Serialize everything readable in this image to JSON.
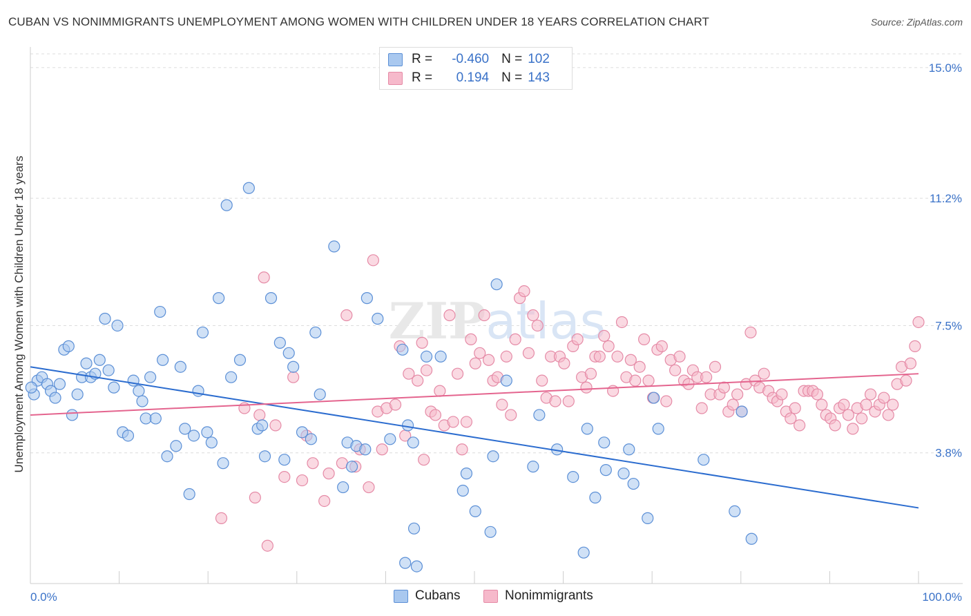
{
  "header": {
    "title": "CUBAN VS NONIMMIGRANTS UNEMPLOYMENT AMONG WOMEN WITH CHILDREN UNDER 18 YEARS CORRELATION CHART",
    "source": "Source: ZipAtlas.com"
  },
  "legend": {
    "rows": [
      {
        "r_label": "R =",
        "r_value": "-0.460",
        "n_label": "N =",
        "n_value": "102"
      },
      {
        "r_label": "R =",
        "r_value": "0.194",
        "n_label": "N =",
        "n_value": "143"
      }
    ],
    "bottom": [
      "Cubans",
      "Nonimmigrants"
    ]
  },
  "watermark": "ZIPatlas",
  "colors": {
    "cubans_fill": "#a9c8ef",
    "cubans_stroke": "#5b8fd6",
    "cubans_line": "#2b6ccf",
    "nonimm_fill": "#f6b9cb",
    "nonimm_stroke": "#e58aa6",
    "nonimm_line": "#e4648e",
    "tick_label": "#3a72c8"
  },
  "chart_data": {
    "type": "scatter",
    "title": "CUBAN VS NONIMMIGRANTS UNEMPLOYMENT AMONG WOMEN WITH CHILDREN UNDER 18 YEARS CORRELATION CHART",
    "xlabel": "",
    "ylabel": "Unemployment Among Women with Children Under 18 years",
    "xlim": [
      0,
      100
    ],
    "ylim": [
      0,
      15.4
    ],
    "x_tick_labels": [
      "0.0%",
      "100.0%"
    ],
    "y_ticks": [
      3.8,
      7.5,
      11.2,
      15.0
    ],
    "y_tick_labels": [
      "3.8%",
      "7.5%",
      "11.2%",
      "15.0%"
    ],
    "grid": "horizontal dashed",
    "legend_position": "top-center",
    "series": [
      {
        "name": "Cubans",
        "trend": {
          "x": [
            0,
            100
          ],
          "y": [
            6.3,
            2.2
          ]
        },
        "points": [
          [
            0.4,
            5.5
          ],
          [
            0.8,
            5.9
          ],
          [
            1.3,
            6.0
          ],
          [
            1.9,
            5.8
          ],
          [
            2.3,
            5.6
          ],
          [
            2.8,
            5.4
          ],
          [
            3.3,
            5.8
          ],
          [
            3.8,
            6.8
          ],
          [
            4.3,
            6.9
          ],
          [
            4.7,
            4.9
          ],
          [
            5.3,
            5.5
          ],
          [
            5.8,
            6.0
          ],
          [
            6.3,
            6.4
          ],
          [
            6.8,
            6.0
          ],
          [
            7.3,
            6.1
          ],
          [
            7.8,
            6.5
          ],
          [
            8.4,
            7.7
          ],
          [
            8.8,
            6.2
          ],
          [
            9.4,
            5.7
          ],
          [
            9.8,
            7.5
          ],
          [
            10.4,
            4.4
          ],
          [
            11.0,
            4.3
          ],
          [
            11.6,
            5.9
          ],
          [
            12.2,
            5.6
          ],
          [
            12.6,
            5.3
          ],
          [
            13.0,
            4.8
          ],
          [
            13.5,
            6.0
          ],
          [
            14.1,
            4.8
          ],
          [
            14.6,
            7.9
          ],
          [
            14.9,
            6.5
          ],
          [
            15.4,
            3.7
          ],
          [
            16.4,
            4.0
          ],
          [
            16.9,
            6.3
          ],
          [
            17.4,
            4.5
          ],
          [
            17.9,
            2.6
          ],
          [
            18.4,
            4.3
          ],
          [
            18.9,
            5.6
          ],
          [
            19.4,
            7.3
          ],
          [
            19.9,
            4.4
          ],
          [
            20.4,
            4.1
          ],
          [
            21.2,
            8.3
          ],
          [
            21.7,
            3.5
          ],
          [
            22.1,
            11.0
          ],
          [
            22.6,
            6.0
          ],
          [
            23.6,
            6.5
          ],
          [
            24.6,
            11.5
          ],
          [
            25.6,
            4.5
          ],
          [
            26.1,
            4.6
          ],
          [
            26.4,
            3.7
          ],
          [
            27.1,
            8.3
          ],
          [
            28.1,
            7.0
          ],
          [
            28.6,
            3.6
          ],
          [
            29.1,
            6.7
          ],
          [
            29.6,
            6.3
          ],
          [
            30.6,
            4.4
          ],
          [
            31.6,
            4.2
          ],
          [
            32.1,
            7.3
          ],
          [
            32.6,
            5.5
          ],
          [
            34.2,
            9.8
          ],
          [
            35.2,
            2.8
          ],
          [
            35.7,
            4.1
          ],
          [
            36.2,
            3.4
          ],
          [
            36.7,
            4.0
          ],
          [
            37.7,
            3.9
          ],
          [
            37.9,
            8.3
          ],
          [
            39.1,
            7.7
          ],
          [
            40.5,
            4.2
          ],
          [
            41.9,
            6.8
          ],
          [
            42.5,
            4.6
          ],
          [
            43.1,
            4.1
          ],
          [
            42.2,
            0.6
          ],
          [
            43.5,
            0.5
          ],
          [
            44.6,
            6.6
          ],
          [
            43.2,
            1.6
          ],
          [
            46.2,
            6.6
          ],
          [
            48.7,
            2.7
          ],
          [
            49.1,
            3.2
          ],
          [
            50.1,
            2.1
          ],
          [
            51.8,
            1.5
          ],
          [
            52.1,
            3.7
          ],
          [
            52.5,
            8.7
          ],
          [
            53.6,
            5.9
          ],
          [
            56.6,
            3.4
          ],
          [
            57.3,
            4.9
          ],
          [
            59.3,
            3.9
          ],
          [
            61.1,
            3.1
          ],
          [
            62.3,
            0.9
          ],
          [
            62.7,
            4.5
          ],
          [
            63.6,
            2.5
          ],
          [
            64.6,
            4.1
          ],
          [
            64.8,
            3.3
          ],
          [
            66.8,
            3.2
          ],
          [
            67.4,
            3.9
          ],
          [
            67.9,
            2.9
          ],
          [
            69.5,
            1.9
          ],
          [
            70.7,
            4.5
          ],
          [
            70.2,
            5.4
          ],
          [
            75.8,
            3.6
          ],
          [
            80.1,
            5.0
          ],
          [
            79.3,
            2.1
          ],
          [
            81.2,
            1.3
          ],
          [
            0.1,
            5.7
          ]
        ]
      },
      {
        "name": "Nonimmigrants",
        "trend": {
          "x": [
            0,
            100
          ],
          "y": [
            4.9,
            6.1
          ]
        },
        "points": [
          [
            21.5,
            1.9
          ],
          [
            24.1,
            5.1
          ],
          [
            25.3,
            2.5
          ],
          [
            25.8,
            4.9
          ],
          [
            26.3,
            8.9
          ],
          [
            26.7,
            1.1
          ],
          [
            27.6,
            4.6
          ],
          [
            28.6,
            3.1
          ],
          [
            29.6,
            6.0
          ],
          [
            30.6,
            3.0
          ],
          [
            31.1,
            4.3
          ],
          [
            31.8,
            3.5
          ],
          [
            33.1,
            2.4
          ],
          [
            33.6,
            3.2
          ],
          [
            35.1,
            3.5
          ],
          [
            35.6,
            7.8
          ],
          [
            36.6,
            3.4
          ],
          [
            37.1,
            3.9
          ],
          [
            38.1,
            2.8
          ],
          [
            38.6,
            9.4
          ],
          [
            39.1,
            5.0
          ],
          [
            39.6,
            3.9
          ],
          [
            40.1,
            5.1
          ],
          [
            41.1,
            5.2
          ],
          [
            41.6,
            6.9
          ],
          [
            42.2,
            4.3
          ],
          [
            42.6,
            6.1
          ],
          [
            43.6,
            5.9
          ],
          [
            44.1,
            7.0
          ],
          [
            44.6,
            6.2
          ],
          [
            44.3,
            3.6
          ],
          [
            45.1,
            5.0
          ],
          [
            45.6,
            4.9
          ],
          [
            46.1,
            5.6
          ],
          [
            46.6,
            4.6
          ],
          [
            47.2,
            7.8
          ],
          [
            47.6,
            4.7
          ],
          [
            48.1,
            6.1
          ],
          [
            48.6,
            3.9
          ],
          [
            49.1,
            4.7
          ],
          [
            49.6,
            7.1
          ],
          [
            50.1,
            6.4
          ],
          [
            50.6,
            6.7
          ],
          [
            51.1,
            7.8
          ],
          [
            51.6,
            6.5
          ],
          [
            52.1,
            5.9
          ],
          [
            52.6,
            6.0
          ],
          [
            53.1,
            5.2
          ],
          [
            53.6,
            6.6
          ],
          [
            54.1,
            4.9
          ],
          [
            54.6,
            7.1
          ],
          [
            55.1,
            8.3
          ],
          [
            55.6,
            8.5
          ],
          [
            56.1,
            6.7
          ],
          [
            56.6,
            7.8
          ],
          [
            57.1,
            7.5
          ],
          [
            57.6,
            5.9
          ],
          [
            58.1,
            5.4
          ],
          [
            58.6,
            6.6
          ],
          [
            59.1,
            5.3
          ],
          [
            59.6,
            6.6
          ],
          [
            60.1,
            6.4
          ],
          [
            60.6,
            5.3
          ],
          [
            61.1,
            6.9
          ],
          [
            61.6,
            7.1
          ],
          [
            62.1,
            6.0
          ],
          [
            62.6,
            5.7
          ],
          [
            63.1,
            6.1
          ],
          [
            63.6,
            6.6
          ],
          [
            64.1,
            6.6
          ],
          [
            64.6,
            7.2
          ],
          [
            65.1,
            6.9
          ],
          [
            65.6,
            5.6
          ],
          [
            66.1,
            6.6
          ],
          [
            66.6,
            7.6
          ],
          [
            67.1,
            6.0
          ],
          [
            67.6,
            6.5
          ],
          [
            68.1,
            5.9
          ],
          [
            68.6,
            6.3
          ],
          [
            69.1,
            7.1
          ],
          [
            69.6,
            5.9
          ],
          [
            70.1,
            5.4
          ],
          [
            70.6,
            6.8
          ],
          [
            71.1,
            6.9
          ],
          [
            71.6,
            5.3
          ],
          [
            72.1,
            6.5
          ],
          [
            72.6,
            6.2
          ],
          [
            73.1,
            6.6
          ],
          [
            73.6,
            5.9
          ],
          [
            74.1,
            5.8
          ],
          [
            74.6,
            6.2
          ],
          [
            75.1,
            6.0
          ],
          [
            75.6,
            5.1
          ],
          [
            76.1,
            6.0
          ],
          [
            76.6,
            5.5
          ],
          [
            77.1,
            6.3
          ],
          [
            77.6,
            5.5
          ],
          [
            78.1,
            5.7
          ],
          [
            78.6,
            5.0
          ],
          [
            79.1,
            5.2
          ],
          [
            79.6,
            5.5
          ],
          [
            80.1,
            5.0
          ],
          [
            80.6,
            5.8
          ],
          [
            81.1,
            7.3
          ],
          [
            81.6,
            5.9
          ],
          [
            82.1,
            5.7
          ],
          [
            82.6,
            6.1
          ],
          [
            83.1,
            5.6
          ],
          [
            83.6,
            5.4
          ],
          [
            84.1,
            5.3
          ],
          [
            84.6,
            5.5
          ],
          [
            85.1,
            5.0
          ],
          [
            85.6,
            4.8
          ],
          [
            86.1,
            5.1
          ],
          [
            86.6,
            4.6
          ],
          [
            87.1,
            5.6
          ],
          [
            87.6,
            5.6
          ],
          [
            88.1,
            5.6
          ],
          [
            88.6,
            5.5
          ],
          [
            89.1,
            5.2
          ],
          [
            89.6,
            4.9
          ],
          [
            90.1,
            4.8
          ],
          [
            90.6,
            4.6
          ],
          [
            91.1,
            5.1
          ],
          [
            91.6,
            5.2
          ],
          [
            92.1,
            4.9
          ],
          [
            92.6,
            4.5
          ],
          [
            93.1,
            5.1
          ],
          [
            93.6,
            4.8
          ],
          [
            94.1,
            5.2
          ],
          [
            94.6,
            5.5
          ],
          [
            95.1,
            5.0
          ],
          [
            95.6,
            5.2
          ],
          [
            96.1,
            5.4
          ],
          [
            96.6,
            4.9
          ],
          [
            97.1,
            5.2
          ],
          [
            97.6,
            5.8
          ],
          [
            98.1,
            6.3
          ],
          [
            98.6,
            5.9
          ],
          [
            99.1,
            6.4
          ],
          [
            99.6,
            6.9
          ],
          [
            100.0,
            7.6
          ]
        ]
      }
    ]
  }
}
